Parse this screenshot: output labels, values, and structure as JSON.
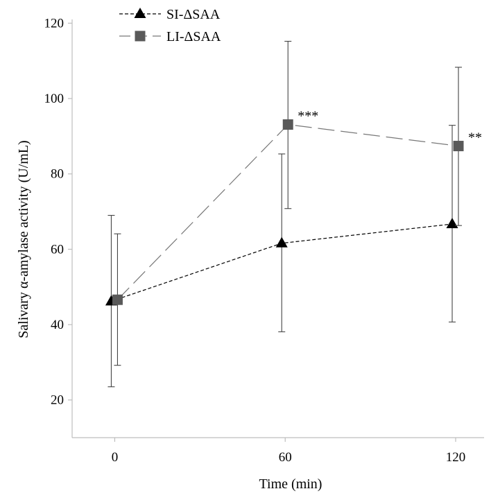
{
  "chart_data": {
    "type": "line",
    "xlabel": "Time (min)",
    "ylabel": "Salivary α-amylase activity (U/mL)",
    "x": [
      0,
      60,
      120
    ],
    "x_tick_labels": [
      "0",
      "60",
      "120"
    ],
    "xlim": [
      -15,
      130
    ],
    "ylim": [
      10,
      121
    ],
    "y_ticks": [
      20,
      40,
      60,
      80,
      100,
      120
    ],
    "grid": false,
    "legend_position": "top-left",
    "series": [
      {
        "name": "SI-ΔSAA",
        "marker": "triangle",
        "line_style": "short-dash",
        "color": "#000000",
        "values": [
          46.2,
          61.6,
          66.7
        ],
        "error_lower": [
          23.5,
          38.1,
          40.7
        ],
        "error_upper": [
          69.0,
          85.3,
          92.9
        ]
      },
      {
        "name": "LI-ΔSAA",
        "marker": "square",
        "line_style": "long-dash",
        "color": "#595959",
        "values": [
          46.6,
          93.1,
          87.4
        ],
        "error_lower": [
          29.2,
          70.8,
          66.3
        ],
        "error_upper": [
          64.1,
          115.2,
          108.3
        ],
        "annotations": [
          "",
          "***",
          "**"
        ]
      }
    ]
  }
}
